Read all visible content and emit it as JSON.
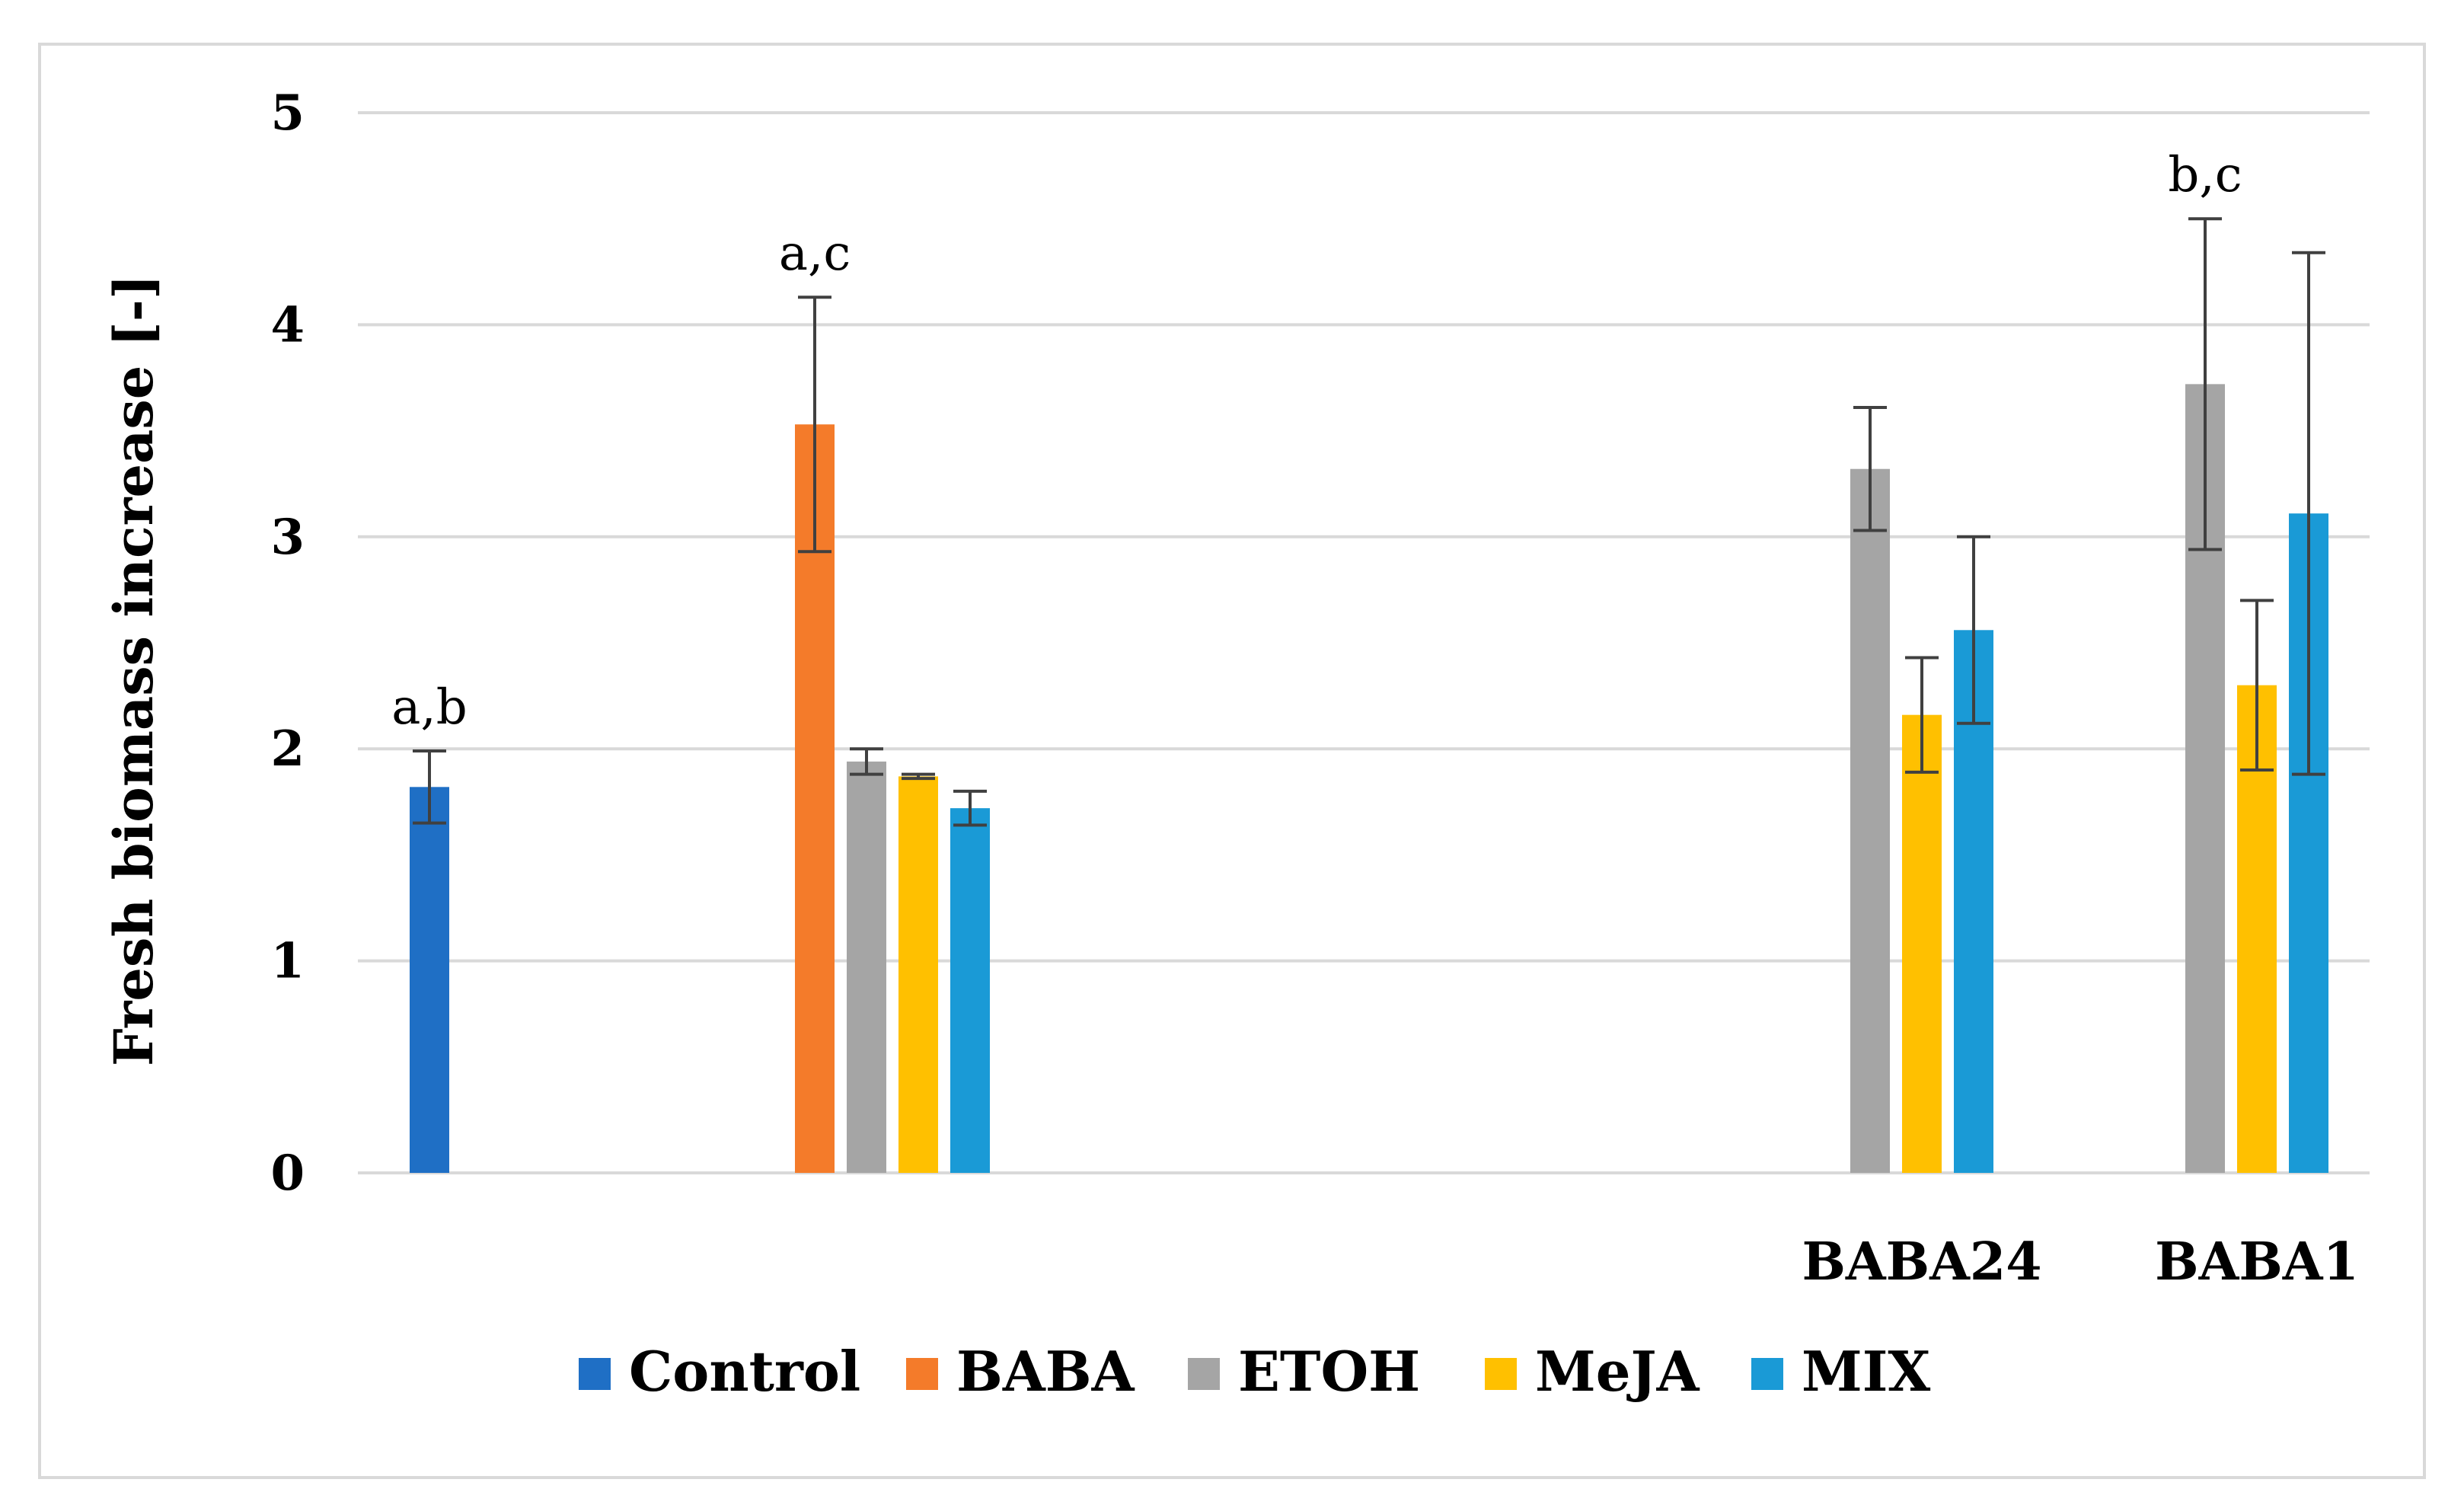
{
  "chart_data": {
    "type": "bar",
    "title": "",
    "xlabel": "",
    "ylabel": "Fresh biomass increase [-]",
    "ylim": [
      0,
      5
    ],
    "yticks": [
      "0",
      "1",
      "2",
      "3",
      "4",
      "5"
    ],
    "grid": true,
    "legend_position": "bottom",
    "categories": [
      "",
      "",
      "",
      "BABA24",
      "BABA1"
    ],
    "series": [
      {
        "name": "Control",
        "color": "#1f6fc5",
        "values": [
          1.82,
          null,
          null,
          null,
          null
        ],
        "errors": [
          0.17,
          null,
          null,
          null,
          null
        ]
      },
      {
        "name": "BABA",
        "color": "#f47b2a",
        "values": [
          null,
          3.53,
          null,
          null,
          null
        ],
        "errors": [
          null,
          0.6,
          null,
          null,
          null
        ]
      },
      {
        "name": "ETOH",
        "color": "#a5a5a5",
        "values": [
          null,
          1.94,
          null,
          3.32,
          3.72
        ],
        "errors": [
          null,
          0.06,
          null,
          0.29,
          0.78
        ]
      },
      {
        "name": "MeJA",
        "color": "#ffc000",
        "values": [
          null,
          1.87,
          null,
          2.16,
          2.3
        ],
        "errors": [
          null,
          0.01,
          null,
          0.27,
          0.4
        ]
      },
      {
        "name": "MIX",
        "color": "#1a9ad6",
        "values": [
          null,
          1.72,
          null,
          2.56,
          3.11
        ],
        "errors": [
          null,
          0.08,
          null,
          0.44,
          1.23
        ]
      }
    ],
    "annotations": [
      {
        "text": "a,b",
        "category": 0,
        "series": 0
      },
      {
        "text": "a,c",
        "category": 1,
        "series": 1
      },
      {
        "text": "b,c",
        "category": 4,
        "series": 2
      }
    ]
  }
}
